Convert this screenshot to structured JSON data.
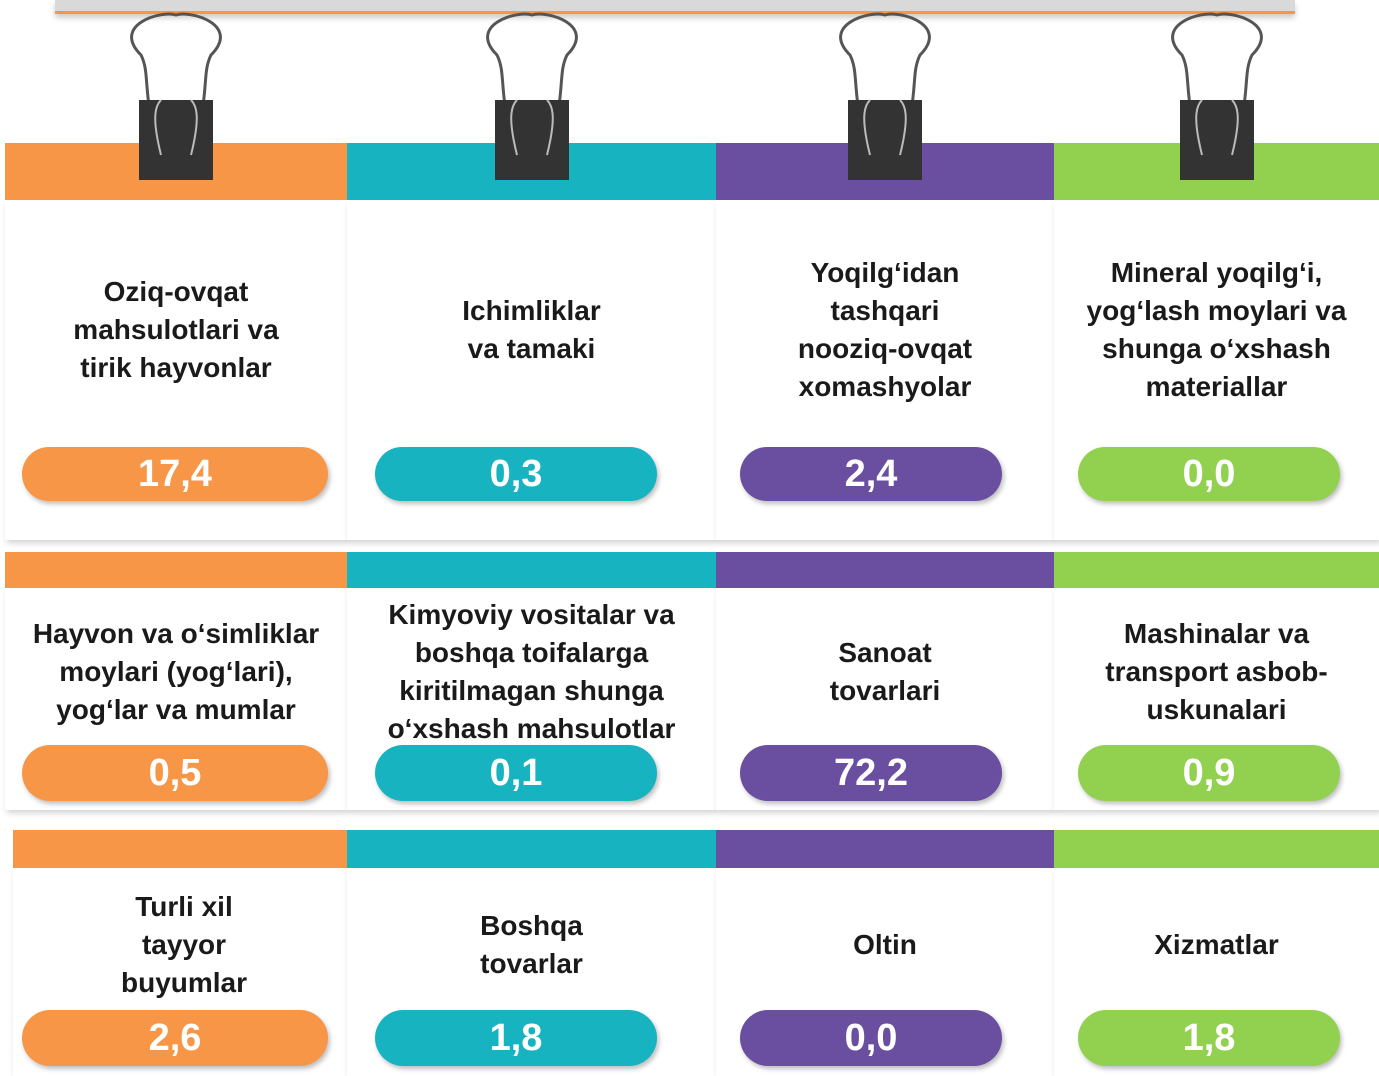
{
  "colors": [
    "#f79646",
    "#17b3c0",
    "#6a4fa0",
    "#92d050"
  ],
  "rows": [
    [
      {
        "label": "Oziq-ovqat\nmahsulotlari va\ntirik hayvonlar",
        "value": "17,4"
      },
      {
        "label": "Ichimliklar\nva tamaki",
        "value": "0,3"
      },
      {
        "label": "Yoqilg‘idan\ntashqari\nnooziq-ovqat\nxomashyolar",
        "value": "2,4"
      },
      {
        "label": "Mineral yoqilg‘i,\nyog‘lash moylari va\nshunga o‘xshash\nmateriallar",
        "value": "0,0"
      }
    ],
    [
      {
        "label": "Hayvon va o‘simliklar\nmoylari (yog‘lari),\nyog‘lar va mumlar",
        "value": "0,5"
      },
      {
        "label": "Kimyoviy vositalar va\nboshqa toifalarga\nkiritilmagan shunga\no‘xshash mahsulotlar",
        "value": "0,1"
      },
      {
        "label": "Sanoat\ntovarlari",
        "value": "72,2"
      },
      {
        "label": "Mashinalar va\ntransport asbob-\nuskunalari",
        "value": "0,9"
      }
    ],
    [
      {
        "label": "Turli xil\ntayyor\nbuyumlar",
        "value": "2,6"
      },
      {
        "label": "Boshqa\ntovarlar",
        "value": "1,8"
      },
      {
        "label": "Oltin",
        "value": "0,0"
      },
      {
        "label": "Xizmatlar",
        "value": "1,8"
      }
    ]
  ]
}
